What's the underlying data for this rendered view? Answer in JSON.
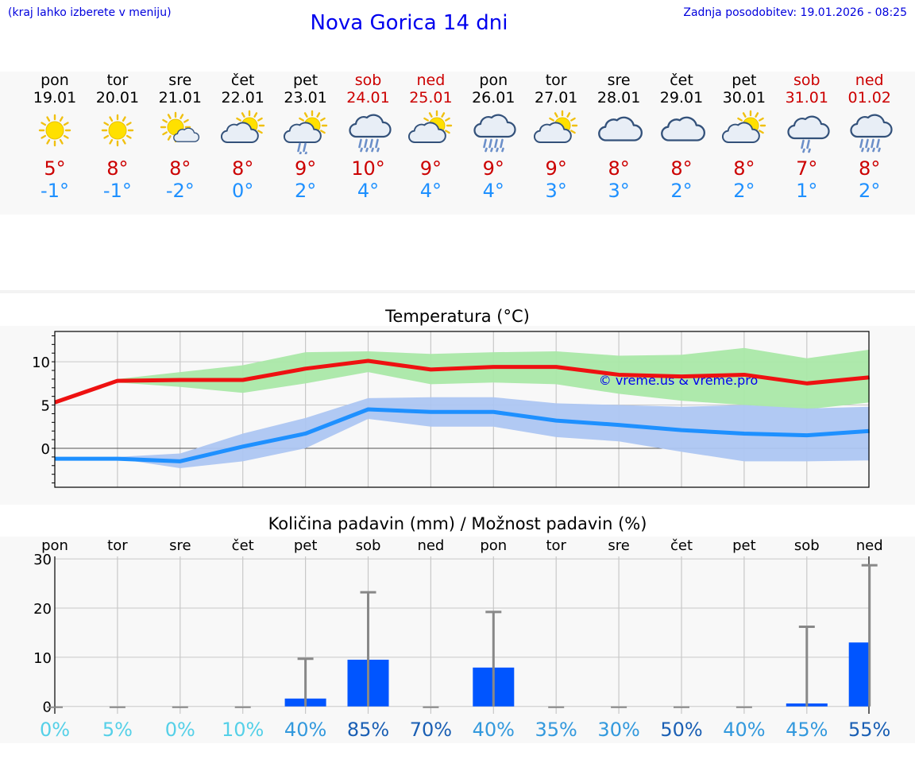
{
  "header": {
    "hint": "(kraj lahko izberete v meniju)",
    "title": "Nova Gorica 14 dni",
    "updated": "Zadnja posodobitev: 19.01.2026 - 08:25"
  },
  "days": [
    {
      "name": "pon",
      "date": "19.01",
      "weekend": false,
      "icon": "sun",
      "tmax": "5°",
      "tmin": "-1°"
    },
    {
      "name": "tor",
      "date": "20.01",
      "weekend": false,
      "icon": "sun",
      "tmax": "8°",
      "tmin": "-1°"
    },
    {
      "name": "sre",
      "date": "21.01",
      "weekend": false,
      "icon": "sun-small-cloud",
      "tmax": "8°",
      "tmin": "-2°"
    },
    {
      "name": "čet",
      "date": "22.01",
      "weekend": false,
      "icon": "sun-cloud",
      "tmax": "8°",
      "tmin": "0°"
    },
    {
      "name": "pet",
      "date": "23.01",
      "weekend": false,
      "icon": "sun-cloud-rain",
      "tmax": "9°",
      "tmin": "2°"
    },
    {
      "name": "sob",
      "date": "24.01",
      "weekend": true,
      "icon": "cloud-rain-heavy",
      "tmax": "10°",
      "tmin": "4°"
    },
    {
      "name": "ned",
      "date": "25.01",
      "weekend": true,
      "icon": "sun-cloud",
      "tmax": "9°",
      "tmin": "4°"
    },
    {
      "name": "pon",
      "date": "26.01",
      "weekend": false,
      "icon": "cloud-rain-heavy",
      "tmax": "9°",
      "tmin": "4°"
    },
    {
      "name": "tor",
      "date": "27.01",
      "weekend": false,
      "icon": "sun-cloud",
      "tmax": "9°",
      "tmin": "3°"
    },
    {
      "name": "sre",
      "date": "28.01",
      "weekend": false,
      "icon": "cloud",
      "tmax": "8°",
      "tmin": "3°"
    },
    {
      "name": "čet",
      "date": "29.01",
      "weekend": false,
      "icon": "cloud",
      "tmax": "8°",
      "tmin": "2°"
    },
    {
      "name": "pet",
      "date": "30.01",
      "weekend": false,
      "icon": "sun-cloud",
      "tmax": "8°",
      "tmin": "2°"
    },
    {
      "name": "sob",
      "date": "31.01",
      "weekend": true,
      "icon": "cloud-rain",
      "tmax": "7°",
      "tmin": "1°"
    },
    {
      "name": "ned",
      "date": "01.02",
      "weekend": true,
      "icon": "cloud-rain-heavy",
      "tmax": "8°",
      "tmin": "2°"
    }
  ],
  "colors": {
    "max_line": "#ee1111",
    "max_band": "#aae8a8",
    "min_line": "#1e90ff",
    "min_band": "#adc6f2",
    "bar": "#0055ff",
    "whisker": "#888888",
    "watermark": "#0000ee"
  },
  "chart_data": [
    {
      "type": "line",
      "title": "Temperatura (°C)",
      "watermark": "© vreme.us & vreme.pro",
      "ylim": [
        -4.5,
        13.5
      ],
      "yticks": [
        0,
        5,
        10
      ],
      "x": [
        0,
        1,
        2,
        3,
        4,
        5,
        6,
        7,
        8,
        9,
        10,
        11,
        12,
        13
      ],
      "series": [
        {
          "name": "max",
          "values": [
            5.3,
            7.8,
            7.9,
            7.9,
            9.2,
            10.1,
            9.1,
            9.4,
            9.4,
            8.5,
            8.3,
            8.5,
            7.5,
            8.2
          ],
          "band_low": [
            5.3,
            7.6,
            7.1,
            6.4,
            7.5,
            8.8,
            7.4,
            7.6,
            7.4,
            6.3,
            5.5,
            5.0,
            4.5,
            5.3
          ],
          "band_high": [
            5.3,
            8.0,
            8.8,
            9.6,
            11.1,
            11.2,
            10.9,
            11.1,
            11.2,
            10.7,
            10.8,
            11.6,
            10.4,
            11.4
          ]
        },
        {
          "name": "min",
          "values": [
            -1.2,
            -1.2,
            -1.5,
            0.2,
            1.7,
            4.5,
            4.2,
            4.2,
            3.2,
            2.7,
            2.1,
            1.7,
            1.5,
            2.0
          ],
          "band_low": [
            -1.2,
            -1.2,
            -2.3,
            -1.5,
            0.0,
            3.4,
            2.5,
            2.5,
            1.3,
            0.8,
            -0.4,
            -1.5,
            -1.5,
            -1.4
          ],
          "band_high": [
            -1.2,
            -1.0,
            -0.6,
            1.7,
            3.5,
            5.8,
            5.9,
            5.9,
            5.2,
            5.0,
            4.8,
            5.0,
            4.6,
            4.8
          ]
        }
      ]
    },
    {
      "type": "bar",
      "title": "Količina padavin (mm) / Možnost padavin (%)",
      "ylim": [
        -1.5,
        30.5
      ],
      "yticks": [
        0,
        10,
        20,
        30
      ],
      "categories": [
        "pon",
        "tor",
        "sre",
        "čet",
        "pet",
        "sob",
        "ned",
        "pon",
        "tor",
        "sre",
        "čet",
        "pet",
        "sob",
        "ned"
      ],
      "values": [
        0,
        0,
        0,
        0,
        1.6,
        9.5,
        0,
        7.9,
        0,
        0,
        0,
        0,
        0.6,
        13.0
      ],
      "whisker_high": [
        0,
        0,
        0,
        0,
        9.7,
        23.2,
        0,
        19.2,
        0,
        0,
        0,
        0,
        16.2,
        28.7
      ],
      "probability": [
        "0%",
        "5%",
        "0%",
        "10%",
        "40%",
        "85%",
        "70%",
        "40%",
        "35%",
        "30%",
        "50%",
        "40%",
        "45%",
        "55%"
      ]
    }
  ]
}
